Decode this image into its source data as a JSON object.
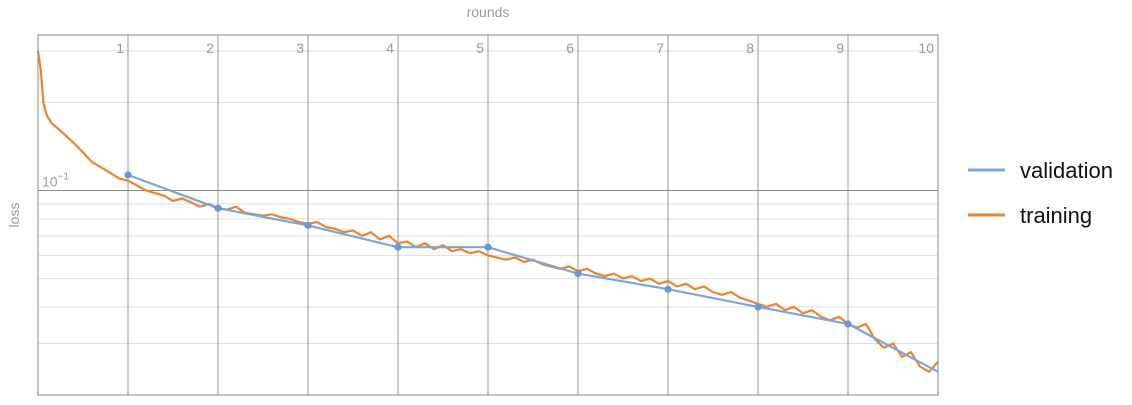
{
  "chart_data": {
    "type": "line",
    "xlabel": "rounds",
    "ylabel": "loss",
    "xlim": [
      0,
      10
    ],
    "x_scale": "linear",
    "y_scale": "log",
    "ylim": [
      0.02,
      0.34
    ],
    "grid": true,
    "legend_position": "right",
    "x_ticks": [
      1,
      2,
      3,
      4,
      5,
      6,
      7,
      8,
      9,
      10
    ],
    "x_tick_labels": [
      "1",
      "2",
      "3",
      "4",
      "5",
      "6",
      "7",
      "8",
      "9",
      "10"
    ],
    "y_tick_label": {
      "base": "10",
      "exponent": "−1",
      "value": 0.1
    },
    "y_minor_ticks": [
      0.02,
      0.03,
      0.04,
      0.05,
      0.06,
      0.07,
      0.08,
      0.09,
      0.2,
      0.3
    ],
    "series": [
      {
        "name": "validation",
        "color": "#7aa6dd",
        "marker": "dot",
        "x": [
          1,
          2,
          3,
          4,
          5,
          6,
          7,
          8,
          9,
          10
        ],
        "y": [
          0.113,
          0.087,
          0.076,
          0.064,
          0.064,
          0.052,
          0.046,
          0.04,
          0.035,
          0.024
        ]
      },
      {
        "name": "training",
        "color": "#f0832a",
        "x": [
          0.0,
          0.03,
          0.06,
          0.1,
          0.15,
          0.2,
          0.3,
          0.4,
          0.5,
          0.6,
          0.7,
          0.8,
          0.9,
          1.0,
          1.1,
          1.2,
          1.3,
          1.4,
          1.5,
          1.6,
          1.7,
          1.8,
          1.9,
          2.0,
          2.1,
          2.2,
          2.3,
          2.4,
          2.5,
          2.6,
          2.7,
          2.8,
          2.9,
          3.0,
          3.1,
          3.2,
          3.3,
          3.4,
          3.5,
          3.6,
          3.7,
          3.8,
          3.9,
          4.0,
          4.1,
          4.2,
          4.3,
          4.4,
          4.5,
          4.6,
          4.7,
          4.8,
          4.9,
          5.0,
          5.1,
          5.2,
          5.3,
          5.4,
          5.5,
          5.6,
          5.7,
          5.8,
          5.9,
          6.0,
          6.1,
          6.2,
          6.3,
          6.4,
          6.5,
          6.6,
          6.7,
          6.8,
          6.9,
          7.0,
          7.1,
          7.2,
          7.3,
          7.4,
          7.5,
          7.6,
          7.7,
          7.8,
          7.9,
          8.0,
          8.1,
          8.2,
          8.3,
          8.4,
          8.5,
          8.6,
          8.7,
          8.8,
          8.9,
          9.0,
          9.1,
          9.2,
          9.3,
          9.4,
          9.5,
          9.6,
          9.7,
          9.8,
          9.9,
          10.0
        ],
        "y": [
          0.3,
          0.26,
          0.2,
          0.18,
          0.17,
          0.165,
          0.155,
          0.145,
          0.135,
          0.125,
          0.12,
          0.115,
          0.11,
          0.108,
          0.104,
          0.1,
          0.098,
          0.096,
          0.092,
          0.094,
          0.091,
          0.088,
          0.09,
          0.087,
          0.086,
          0.088,
          0.084,
          0.083,
          0.082,
          0.083,
          0.081,
          0.08,
          0.078,
          0.077,
          0.078,
          0.075,
          0.074,
          0.072,
          0.073,
          0.07,
          0.072,
          0.068,
          0.07,
          0.066,
          0.067,
          0.064,
          0.066,
          0.063,
          0.065,
          0.062,
          0.063,
          0.061,
          0.062,
          0.06,
          0.059,
          0.058,
          0.059,
          0.057,
          0.058,
          0.056,
          0.055,
          0.054,
          0.055,
          0.053,
          0.054,
          0.052,
          0.051,
          0.052,
          0.05,
          0.051,
          0.049,
          0.05,
          0.048,
          0.049,
          0.047,
          0.048,
          0.046,
          0.047,
          0.045,
          0.044,
          0.045,
          0.043,
          0.042,
          0.041,
          0.04,
          0.041,
          0.039,
          0.04,
          0.038,
          0.039,
          0.037,
          0.036,
          0.037,
          0.035,
          0.034,
          0.035,
          0.031,
          0.029,
          0.03,
          0.027,
          0.028,
          0.025,
          0.024,
          0.026
        ]
      }
    ]
  }
}
